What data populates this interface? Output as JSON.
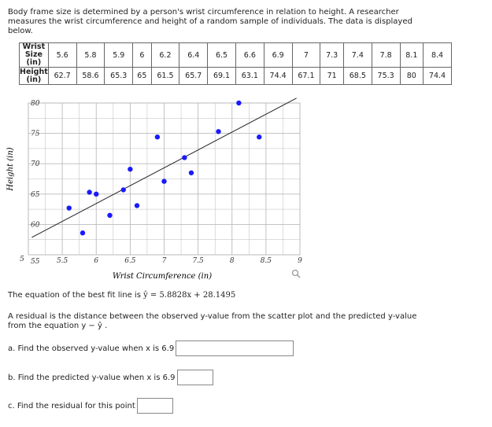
{
  "intro": {
    "line1": "Body frame size is determined by a person's wrist circumference in relation to height. A researcher",
    "line2": "measures the wrist circumference and height of a random sample of individuals. The data is displayed",
    "line3": "below."
  },
  "table": {
    "row1_label_a": "Wrist",
    "row1_label_b": "Size",
    "row1_label_c": "(in)",
    "row2_label_a": "Height",
    "row2_label_b": "(in)",
    "wrist": [
      "5.6",
      "5.8",
      "5.9",
      "6",
      "6.2",
      "6.4",
      "6.5",
      "6.6",
      "6.9",
      "7",
      "7.3",
      "7.4",
      "7.8",
      "8.1",
      "8.4"
    ],
    "height": [
      "62.7",
      "58.6",
      "65.3",
      "65",
      "61.5",
      "65.7",
      "69.1",
      "63.1",
      "74.4",
      "67.1",
      "71",
      "68.5",
      "75.3",
      "80",
      "74.4"
    ]
  },
  "chart_data": {
    "type": "scatter",
    "xlabel": "Wrist Circumference (in)",
    "ylabel": "Height (in)",
    "xlim": [
      5,
      9
    ],
    "ylim": [
      55,
      80
    ],
    "x_ticks": [
      "5.5",
      "6",
      "6.5",
      "7",
      "7.5",
      "8",
      "8.5",
      "9"
    ],
    "x_tick_values": [
      5.5,
      6,
      6.5,
      7,
      7.5,
      8,
      8.5,
      9
    ],
    "y_ticks": [
      "55",
      "60",
      "65",
      "70",
      "75",
      "80"
    ],
    "y_tick_values": [
      55,
      60,
      65,
      70,
      75,
      80
    ],
    "origin_x_label": "5",
    "grid": true,
    "points": [],
    "fit_line": {
      "slope": 5.8828,
      "intercept": 28.1495
    },
    "colors": {
      "points": "#1a1aff",
      "line": "#222222",
      "grid": "#bbbbbb"
    }
  },
  "equation": {
    "prefix": "The equation of the best fit line is ",
    "formula": "ŷ = 5.8828x + 28.1495"
  },
  "residual": {
    "line1": "A residual is the distance between the observed y-value from the scatter plot and the predicted y-value",
    "line2": "from the equation y − ŷ ."
  },
  "questions": {
    "a_label": "a. Find the observed y-value when x is 6.9",
    "a_value": "",
    "b_label": "b. Find the predicted y-value when x is 6.9",
    "b_value": "",
    "c_label": "c. Find the residual for this point",
    "c_value": ""
  }
}
